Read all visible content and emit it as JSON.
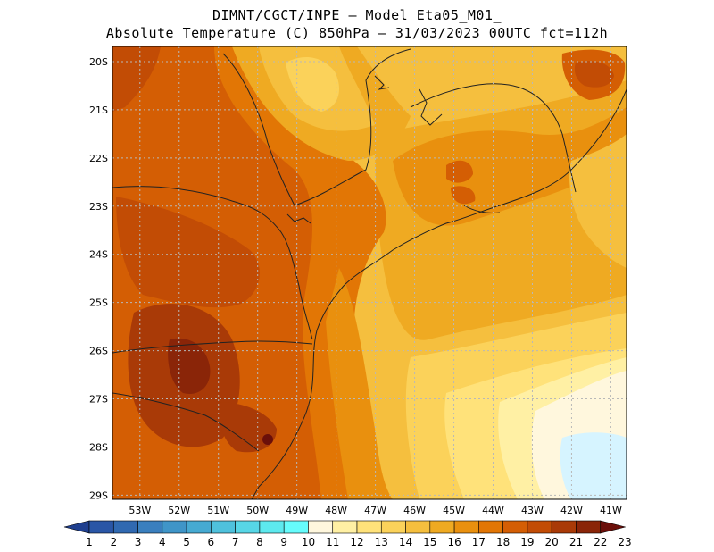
{
  "title": {
    "line1": "DIMNT/CGCT/INPE –  Model Eta05_M01_",
    "line2": "Absolute Temperature (C) 850hPa –  31/03/2023 00UTC fct=112h"
  },
  "map": {
    "lat_labels": [
      "20S",
      "21S",
      "22S",
      "23S",
      "24S",
      "25S",
      "26S",
      "27S",
      "28S",
      "29S"
    ],
    "lon_labels": [
      "53W",
      "52W",
      "51W",
      "50W",
      "49W",
      "48W",
      "47W",
      "46W",
      "45W",
      "44W",
      "43W",
      "42W",
      "41W"
    ],
    "lat_range": [
      20,
      29.4
    ],
    "lon_range": [
      53.7,
      40.6
    ],
    "gridlines": "dotted"
  },
  "colorbar": {
    "labels": [
      "1",
      "2",
      "3",
      "4",
      "5",
      "6",
      "7",
      "8",
      "9",
      "10",
      "11",
      "12",
      "13",
      "14",
      "15",
      "16",
      "17",
      "18",
      "19",
      "20",
      "21",
      "22",
      "23"
    ],
    "colors": [
      "#1f3f8f",
      "#2a56a6",
      "#3069b1",
      "#3a7fbe",
      "#3f95c8",
      "#46aad2",
      "#4fc1dc",
      "#57d6e6",
      "#5de9ee",
      "#66fcfc",
      "#fff7dd",
      "#fff0a4",
      "#ffe27a",
      "#fbd25a",
      "#f5bf3e",
      "#efaa22",
      "#e9900e",
      "#e27605",
      "#d45e04",
      "#c24c05",
      "#a93a07",
      "#8a2508",
      "#6b0f0a"
    ]
  }
}
